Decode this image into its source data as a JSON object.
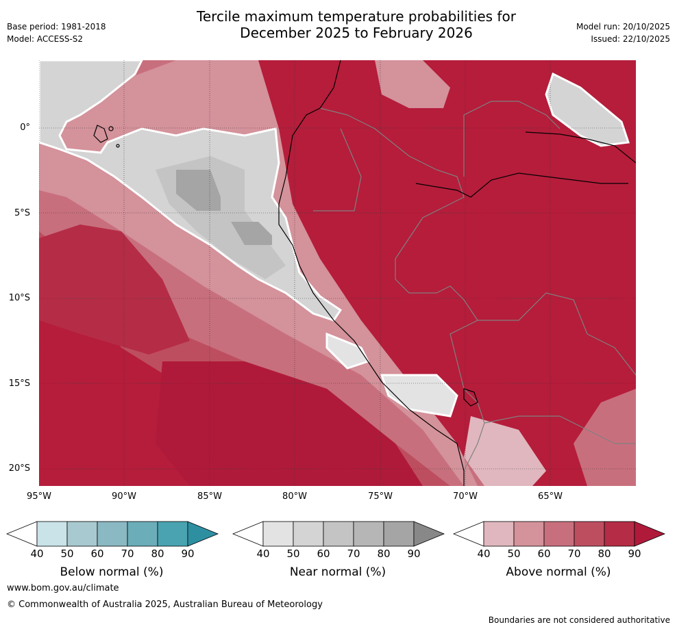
{
  "header": {
    "title_line1": "Tercile maximum temperature probabilities for",
    "title_line2": "December 2025 to February 2026",
    "base_period": "Base period: 1981-2018",
    "model": "Model: ACCESS-S2",
    "model_run": "Model run: 20/10/2025",
    "issued": "Issued: 22/10/2025"
  },
  "map": {
    "lat_labels": [
      "0°",
      "5°S",
      "10°S",
      "15°S",
      "20°S"
    ],
    "lon_labels": [
      "95°W",
      "90°W",
      "85°W",
      "80°W",
      "75°W",
      "70°W",
      "65°W"
    ],
    "ocean_color": "#b51d3b",
    "near_normal_color": "#d4d4d4",
    "coast_color": "#000000",
    "border_color": "#808080"
  },
  "colorbars": [
    {
      "title": "Below normal (%)",
      "ticks": [
        "40",
        "50",
        "60",
        "70",
        "80",
        "90"
      ],
      "colors": [
        "#ffffff",
        "#c9e3e8",
        "#a8c9cf",
        "#8ab8c3",
        "#6badb9",
        "#49a3b1",
        "#2e8fa1"
      ]
    },
    {
      "title": "Near normal (%)",
      "ticks": [
        "40",
        "50",
        "60",
        "70",
        "80",
        "90"
      ],
      "colors": [
        "#ffffff",
        "#e3e3e3",
        "#d4d4d4",
        "#c4c4c4",
        "#b6b6b6",
        "#a5a5a5",
        "#888888"
      ]
    },
    {
      "title": "Above normal (%)",
      "ticks": [
        "40",
        "50",
        "60",
        "70",
        "80",
        "90"
      ],
      "colors": [
        "#ffffff",
        "#e0b7be",
        "#d4929b",
        "#c86f7d",
        "#bd4e60",
        "#b52c46",
        "#b01a3a"
      ]
    }
  ],
  "footer": {
    "website": "www.bom.gov.au/climate",
    "copyright": "© Commonwealth of Australia 2025, Australian Bureau of Meteorology",
    "disclaimer": "Boundaries are not considered authoritative"
  }
}
